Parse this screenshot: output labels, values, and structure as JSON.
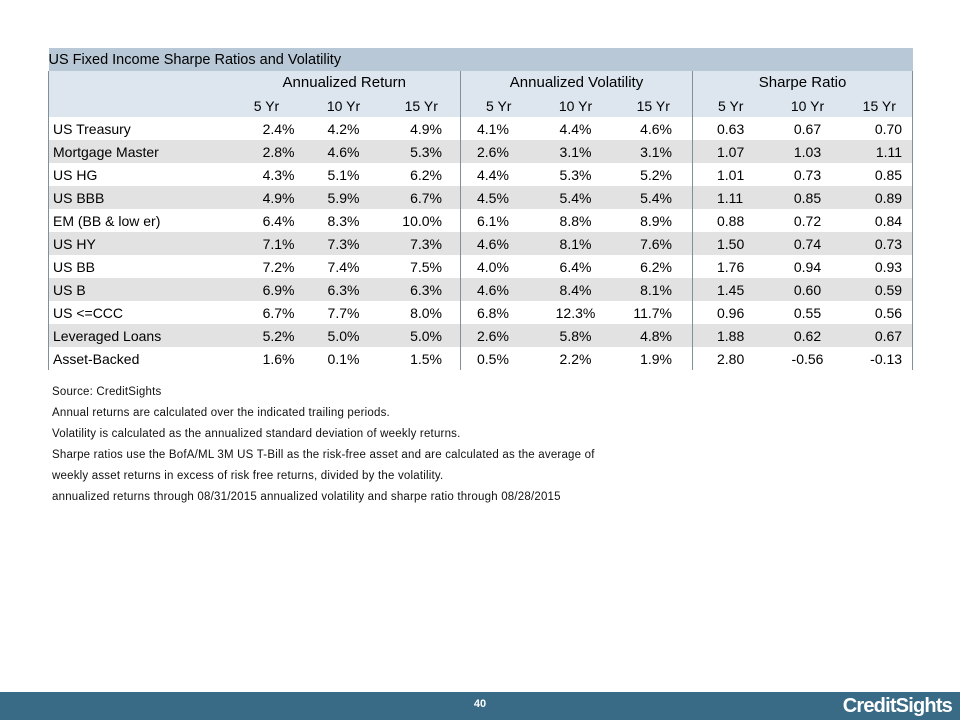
{
  "table": {
    "title": "US Fixed Income Sharpe Ratios and Volatility",
    "groups": [
      "Annualized Return",
      "Annualized Volatility",
      "Sharpe Ratio"
    ],
    "periods": [
      "5 Yr",
      "10 Yr",
      "15 Yr",
      "5 Yr",
      "10 Yr",
      "15 Yr",
      "5 Yr",
      "10 Yr",
      "15 Yr"
    ],
    "rows": [
      {
        "name": "US Treasury",
        "values": [
          "2.4%",
          "4.2%",
          "4.9%",
          "4.1%",
          "4.4%",
          "4.6%",
          "0.63",
          "0.67",
          "0.70"
        ]
      },
      {
        "name": "Mortgage Master",
        "values": [
          "2.8%",
          "4.6%",
          "5.3%",
          "2.6%",
          "3.1%",
          "3.1%",
          "1.07",
          "1.03",
          "1.11"
        ]
      },
      {
        "name": "US HG",
        "values": [
          "4.3%",
          "5.1%",
          "6.2%",
          "4.4%",
          "5.3%",
          "5.2%",
          "1.01",
          "0.73",
          "0.85"
        ]
      },
      {
        "name": "US BBB",
        "values": [
          "4.9%",
          "5.9%",
          "6.7%",
          "4.5%",
          "5.4%",
          "5.4%",
          "1.11",
          "0.85",
          "0.89"
        ]
      },
      {
        "name": "EM (BB & low er)",
        "values": [
          "6.4%",
          "8.3%",
          "10.0%",
          "6.1%",
          "8.8%",
          "8.9%",
          "0.88",
          "0.72",
          "0.84"
        ]
      },
      {
        "name": "US HY",
        "values": [
          "7.1%",
          "7.3%",
          "7.3%",
          "4.6%",
          "8.1%",
          "7.6%",
          "1.50",
          "0.74",
          "0.73"
        ]
      },
      {
        "name": "US BB",
        "values": [
          "7.2%",
          "7.4%",
          "7.5%",
          "4.0%",
          "6.4%",
          "6.2%",
          "1.76",
          "0.94",
          "0.93"
        ]
      },
      {
        "name": "US B",
        "values": [
          "6.9%",
          "6.3%",
          "6.3%",
          "4.6%",
          "8.4%",
          "8.1%",
          "1.45",
          "0.60",
          "0.59"
        ]
      },
      {
        "name": "US <=CCC",
        "values": [
          "6.7%",
          "7.7%",
          "8.0%",
          "6.8%",
          "12.3%",
          "11.7%",
          "0.96",
          "0.55",
          "0.56"
        ]
      },
      {
        "name": "Leveraged Loans",
        "values": [
          "5.2%",
          "5.0%",
          "5.0%",
          "2.6%",
          "5.8%",
          "4.8%",
          "1.88",
          "0.62",
          "0.67"
        ]
      },
      {
        "name": "Asset-Backed",
        "values": [
          "1.6%",
          "0.1%",
          "1.5%",
          "0.5%",
          "2.2%",
          "1.9%",
          "2.80",
          "-0.56",
          "-0.13"
        ]
      }
    ]
  },
  "notes": {
    "source": "Source: CreditSights",
    "line1": "Annual returns are calculated over the indicated trailing periods.",
    "line2": "Volatility is calculated as the annualized standard deviation of weekly returns.",
    "line3": "Sharpe ratios use the BofA/ML 3M US T-Bill as the risk-free asset and are calculated as the average of",
    "line4": "weekly asset returns in excess of risk free returns, divided by the volatility.",
    "line5": "annualized returns through 08/31/2015 annualized volatility and sharpe ratio through 08/28/2015"
  },
  "footer": {
    "page_number": "40",
    "logo": "CreditSights",
    "bar_color": "#3a6b86"
  }
}
